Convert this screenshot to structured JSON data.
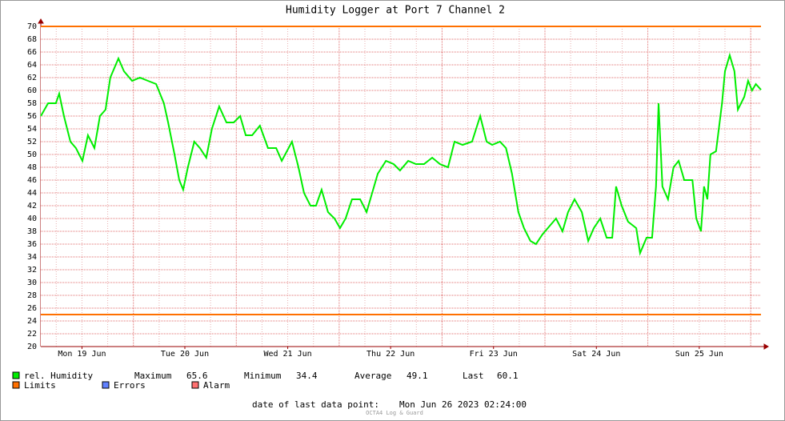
{
  "chart_data": {
    "type": "line",
    "title": "Humidity Logger at Port 7 Channel 2",
    "xlim": [
      0,
      168
    ],
    "xticks": [
      {
        "value": 9.6,
        "label": "Mon 19 Jun"
      },
      {
        "value": 33.6,
        "label": "Tue 20 Jun"
      },
      {
        "value": 57.6,
        "label": "Wed 21 Jun"
      },
      {
        "value": 81.6,
        "label": "Thu 22 Jun"
      },
      {
        "value": 105.6,
        "label": "Fri 23 Jun"
      },
      {
        "value": 129.6,
        "label": "Sat 24 Jun"
      },
      {
        "value": 153.6,
        "label": "Sun 25 Jun"
      }
    ],
    "xgrid": [
      21.6,
      45.6,
      69.6,
      93.6,
      117.6,
      141.6,
      165.6
    ],
    "xgrid_minor": [
      3.6,
      9.6,
      15.6,
      27.6,
      33.6,
      39.6,
      51.6,
      57.6,
      63.6,
      75.6,
      81.6,
      87.6,
      99.6,
      105.6,
      111.6,
      123.6,
      129.6,
      135.6,
      147.6,
      153.6,
      159.6
    ],
    "ylim": [
      20,
      70
    ],
    "yticks": [
      20,
      22,
      24,
      26,
      28,
      30,
      32,
      34,
      36,
      38,
      40,
      42,
      44,
      46,
      48,
      50,
      52,
      54,
      56,
      58,
      60,
      62,
      64,
      66,
      68,
      70
    ],
    "grid": true,
    "limits": [
      25,
      70
    ],
    "limits_color": "#ff7000",
    "series": [
      {
        "name": "rel. Humidity",
        "color": "#00ee00",
        "x": [
          0,
          1.7,
          3.5,
          4.3,
          5.4,
          6.9,
          8.2,
          9.7,
          11.0,
          12.5,
          13.8,
          15.1,
          16.2,
          18.1,
          19.4,
          21.3,
          23.1,
          25.0,
          26.9,
          28.7,
          29.7,
          31.2,
          32.3,
          33.2,
          34.3,
          35.8,
          37.1,
          38.6,
          39.9,
          41.6,
          43.3,
          45.0,
          46.5,
          47.8,
          49.3,
          51.1,
          53.0,
          54.9,
          56.2,
          58.6,
          60.1,
          61.4,
          62.9,
          64.2,
          65.5,
          67.0,
          68.5,
          69.8,
          71.1,
          72.6,
          74.5,
          76.0,
          77.3,
          78.6,
          80.5,
          82.3,
          83.8,
          85.7,
          87.5,
          89.4,
          91.3,
          93.1,
          95.0,
          96.5,
          98.4,
          100.6,
          102.5,
          104.0,
          105.3,
          107.1,
          108.5,
          109.9,
          111.4,
          112.7,
          114.2,
          115.5,
          117.0,
          118.9,
          120.2,
          121.7,
          123.0,
          124.5,
          126.2,
          127.7,
          129.0,
          130.5,
          132.0,
          133.3,
          134.2,
          135.5,
          137.0,
          138.9,
          139.8,
          141.3,
          142.6,
          143.5,
          144.1,
          145.0,
          146.3,
          147.6,
          148.8,
          150.1,
          152.0,
          152.9,
          154.0,
          154.7,
          155.5,
          156.2,
          157.5,
          158.9,
          159.6,
          160.7,
          161.8,
          162.6,
          164.1,
          165.0,
          165.9,
          166.8,
          168.0
        ],
        "values": [
          56,
          58,
          58,
          59.5,
          56,
          52,
          51,
          49,
          53,
          51,
          56,
          57,
          62,
          65,
          63,
          61.5,
          62,
          61.5,
          61,
          58,
          55,
          50,
          46,
          44.5,
          48,
          52,
          51,
          49.5,
          54,
          57.5,
          55,
          55,
          56,
          53,
          53,
          54.5,
          51,
          51,
          49,
          52,
          48,
          44,
          42,
          42,
          44.5,
          41,
          40,
          38.5,
          40,
          43,
          43,
          41,
          44,
          47,
          49,
          48.5,
          47.5,
          49,
          48.5,
          48.5,
          49.5,
          48.5,
          48,
          52,
          51.5,
          52,
          56,
          52,
          51.5,
          52,
          51,
          47,
          41,
          38.5,
          36.5,
          36,
          37.5,
          39,
          40,
          38,
          41,
          43,
          41,
          36.5,
          38.5,
          40,
          37,
          37,
          45,
          42,
          39.5,
          38.5,
          34.6,
          37,
          37,
          45,
          58,
          45,
          43,
          48,
          49,
          46,
          46,
          40,
          38,
          45,
          43,
          50,
          50.5,
          58,
          63,
          65.5,
          63,
          57,
          59,
          61.5,
          60,
          61,
          60.1
        ]
      }
    ],
    "stats": [
      {
        "label": "Maximum",
        "value": 65.6
      },
      {
        "label": "Minimum",
        "value": 34.4
      },
      {
        "label": "Average",
        "value": 49.1
      },
      {
        "label": "Last",
        "value": 60.1
      }
    ],
    "legend": [
      {
        "name": "Limits",
        "color": "#ff7000"
      },
      {
        "name": "Errors",
        "color": "#6080ff"
      },
      {
        "name": "Alarm",
        "color": "#ff7070"
      }
    ],
    "footer_label": "date of last data point:",
    "footer_value": "Mon Jun 26 2023 02:24:00",
    "watermark": "OCTA4 Log & Guard"
  }
}
